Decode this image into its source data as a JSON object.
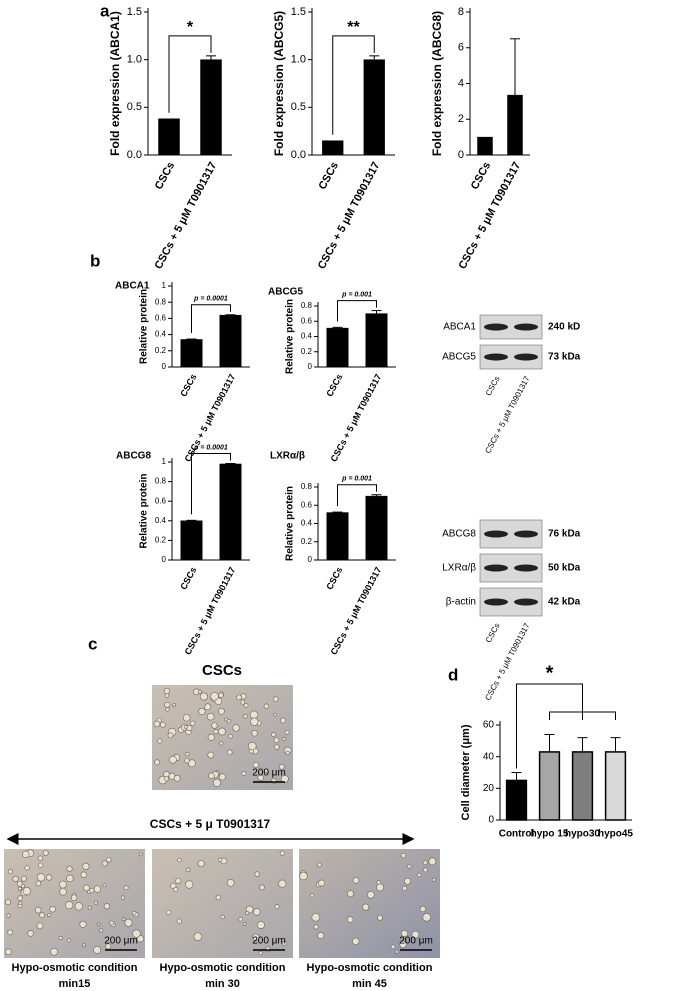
{
  "figure": {
    "panel_labels": [
      "a",
      "b",
      "c",
      "d"
    ]
  },
  "chart_data": [
    {
      "type": "bar",
      "y_label": "Fold expression (ABCA1)",
      "categories": [
        "CSCs",
        "CSCs + 5 μM T0901317"
      ],
      "values": [
        0.38,
        1.0
      ],
      "errors": [
        0,
        0.04
      ],
      "color": "#000000",
      "ylim": [
        0,
        1.5
      ],
      "yticks": [
        {
          "value": 0,
          "label": "0.0"
        },
        0.5,
        {
          "value": 1,
          "label": "1.0"
        },
        1.5
      ],
      "annotation": "*"
    },
    {
      "type": "bar",
      "y_label": "Fold expression (ABCG5)",
      "categories": [
        "CSCs",
        "CSCs + 5 μM T0901317"
      ],
      "values": [
        0.15,
        1.0
      ],
      "errors": [
        0,
        0.04
      ],
      "color": "#000000",
      "ylim": [
        0,
        1.5
      ],
      "yticks": [
        {
          "value": 0,
          "label": "0.0"
        },
        0.5,
        {
          "value": 1,
          "label": "1.0"
        },
        1.5
      ],
      "annotation": "**"
    },
    {
      "type": "bar",
      "y_label": "Fold expression (ABCG8)",
      "categories": [
        "CSCs",
        "CSCs + 5 μM T0901317"
      ],
      "values": [
        1,
        3.35
      ],
      "errors": [
        0,
        3.15
      ],
      "color": "#000000",
      "ylim": [
        0,
        8
      ],
      "yticks": [
        0,
        2,
        4,
        6,
        8
      ]
    },
    {
      "type": "bar",
      "title": "ABCA1",
      "y_label": "Relative protein",
      "categories": [
        "CSCs",
        "CSCs + 5 μM T0901317"
      ],
      "values": [
        0.34,
        0.64
      ],
      "errors": [
        0.005,
        0.005
      ],
      "color": "#000000",
      "ylim": [
        0,
        1
      ],
      "yticks": [
        0,
        0.2,
        0.4,
        0.6,
        0.8,
        1
      ],
      "annotation": "p = 0.0001"
    },
    {
      "type": "bar",
      "title": "ABCG5",
      "y_label": "Relative protein",
      "categories": [
        "CSCs",
        "CSCs + 5 μM T0901317"
      ],
      "values": [
        0.51,
        0.7
      ],
      "errors": [
        0.01,
        0.04
      ],
      "color": "#000000",
      "ylim": [
        0,
        0.8
      ],
      "yticks": [
        0,
        0.2,
        0.4,
        0.6,
        0.8
      ],
      "annotation": "p = 0.001"
    },
    {
      "type": "bar",
      "title": "ABCG8",
      "y_label": "Relative protein",
      "categories": [
        "CSCs",
        "CSCs + 5 μM T0901317"
      ],
      "values": [
        0.4,
        0.98
      ],
      "errors": [
        0.005,
        0.005
      ],
      "color": "#000000",
      "ylim": [
        0,
        1
      ],
      "yticks": [
        0,
        0.2,
        0.4,
        0.6,
        0.8,
        1
      ],
      "annotation": "p = 0.0001"
    },
    {
      "type": "bar",
      "title": "LXRα/β",
      "y_label": "Relative protein",
      "categories": [
        "CSCs",
        "CSCs + 5 μM T0901317"
      ],
      "values": [
        0.52,
        0.7
      ],
      "errors": [
        0.005,
        0.015
      ],
      "color": "#000000",
      "ylim": [
        0,
        0.8
      ],
      "yticks": [
        0,
        0.2,
        0.4,
        0.6,
        0.8
      ],
      "annotation": "p = 0.001"
    },
    {
      "type": "bar",
      "y_label": "Cell diameter (μm)",
      "categories": [
        "Control",
        "hypo 15",
        "hypo30",
        "hypo45"
      ],
      "values": [
        25,
        43,
        43,
        43
      ],
      "errors": [
        5,
        11,
        9,
        9
      ],
      "colors": [
        "#000000",
        "#a6a6a6",
        "#7f7f7f",
        "#d9d9d9"
      ],
      "ylim": [
        0,
        60
      ],
      "yticks": [
        0,
        20,
        40,
        60
      ],
      "annotation": "*"
    }
  ],
  "blots": [
    {
      "rows": [
        {
          "label": "ABCA1",
          "size": "240 kD"
        },
        {
          "label": "ABCG5",
          "size": "73 kDa"
        }
      ],
      "lanes": [
        "CSCs",
        "CSCs + 5 μM T0901317"
      ]
    },
    {
      "rows": [
        {
          "label": "ABCG8",
          "size": "76 kDa"
        },
        {
          "label": "LXRα/β",
          "size": "50 kDa"
        },
        {
          "label": "β-actin",
          "size": "42 kDa"
        }
      ],
      "lanes": [
        "CSCs",
        "CSCs + 5 μM T0901317"
      ]
    }
  ],
  "micrographs": {
    "top_title": "CSCs",
    "treatment": "CSCs + 5 μ T0901317",
    "scale_bar": "200 μm",
    "captions": [
      [
        "Hypo-osmotic condition",
        "min15"
      ],
      [
        "Hypo-osmotic condition",
        "min 30"
      ],
      [
        "Hypo-osmotic condition",
        "min 45"
      ]
    ]
  }
}
